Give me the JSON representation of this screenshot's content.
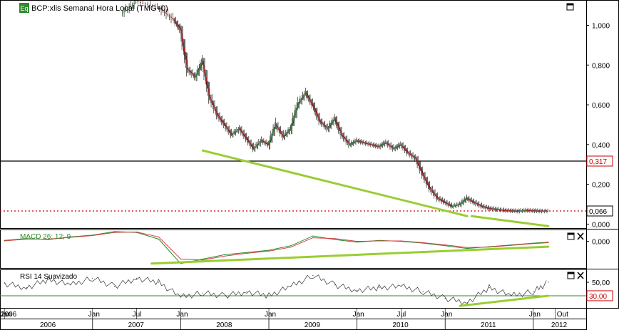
{
  "header": {
    "eq_badge": "Eq",
    "title": "BCP:xlis Semanal Hora Local (TMG+0)"
  },
  "colors": {
    "trendline": "#9acd32",
    "last_price_line": "#cc0000",
    "support_line": "#000000",
    "macd_line": "#2e8b2e",
    "signal_line": "#d04040",
    "rsi_line": "#333333",
    "rsi_threshold": "#2e8b2e",
    "up_candle": "#2e8b2e",
    "down_candle": "#b22222"
  },
  "icons": {
    "maximize": "maximize-icon",
    "close": "close-icon"
  },
  "chart_data": [
    {
      "type": "line",
      "name": "price",
      "title": "BCP:xlis Semanal Hora Local (TMG+0)",
      "y_ticks": [
        "1,000",
        "0,800",
        "0,600",
        "0,400",
        "0,200",
        "0,000"
      ],
      "ylim": [
        -0.02,
        1.12
      ],
      "markers": [
        {
          "label": "0,317",
          "value": 0.317,
          "style": "solid"
        },
        {
          "label": "0,066",
          "value": 0.066,
          "style": "dotted"
        }
      ],
      "x": [
        2007.33,
        2007.5,
        2007.75,
        2007.92,
        2008.0,
        2008.08,
        2008.17,
        2008.25,
        2008.33,
        2008.42,
        2008.5,
        2008.58,
        2008.67,
        2008.75,
        2008.83,
        2008.92,
        2009.0,
        2009.08,
        2009.17,
        2009.25,
        2009.33,
        2009.42,
        2009.5,
        2009.58,
        2009.67,
        2009.75,
        2009.83,
        2009.92,
        2010.0,
        2010.08,
        2010.17,
        2010.25,
        2010.33,
        2010.42,
        2010.5,
        2010.58,
        2010.67,
        2010.75,
        2010.83,
        2010.92,
        2011.0,
        2011.08,
        2011.17,
        2011.25,
        2011.33,
        2011.42,
        2011.5,
        2011.58,
        2011.67,
        2011.75,
        2011.83,
        2011.92,
        2012.0,
        2012.08,
        2012.17
      ],
      "y": [
        1.06,
        1.12,
        1.09,
        1.03,
        0.98,
        0.78,
        0.74,
        0.82,
        0.64,
        0.55,
        0.5,
        0.45,
        0.48,
        0.43,
        0.38,
        0.42,
        0.4,
        0.5,
        0.44,
        0.48,
        0.6,
        0.66,
        0.6,
        0.52,
        0.48,
        0.53,
        0.45,
        0.4,
        0.42,
        0.41,
        0.4,
        0.39,
        0.41,
        0.38,
        0.4,
        0.36,
        0.33,
        0.25,
        0.18,
        0.13,
        0.11,
        0.09,
        0.1,
        0.13,
        0.11,
        0.09,
        0.08,
        0.075,
        0.07,
        0.068,
        0.066,
        0.07,
        0.068,
        0.066,
        0.066
      ],
      "trendlines": [
        {
          "from": [
            2008.25,
            0.37
          ],
          "to": [
            2011.25,
            0.04
          ]
        },
        {
          "from": [
            2011.3,
            0.04
          ],
          "to": [
            2012.17,
            -0.01
          ]
        }
      ]
    },
    {
      "type": "line",
      "name": "macd",
      "legend": "MACD 26; 12; 9",
      "y_ticks": [
        "0,000"
      ],
      "x": [
        2006.0,
        2006.25,
        2006.5,
        2006.75,
        2007.0,
        2007.25,
        2007.5,
        2007.75,
        2008.0,
        2008.25,
        2008.5,
        2008.75,
        2009.0,
        2009.25,
        2009.5,
        2009.75,
        2010.0,
        2010.25,
        2010.5,
        2010.75,
        2011.0,
        2011.25,
        2011.5,
        2011.75,
        2012.0,
        2012.17
      ],
      "series": [
        {
          "values": [
            0.002,
            0.006,
            0.004,
            0.01,
            0.014,
            0.022,
            0.02,
            0.005,
            -0.05,
            -0.04,
            -0.03,
            -0.025,
            -0.02,
            -0.01,
            0.012,
            0.004,
            -0.002,
            0.002,
            0.0,
            -0.004,
            -0.01,
            -0.016,
            -0.012,
            -0.008,
            -0.004,
            -0.002
          ]
        },
        {
          "values": [
            0.001,
            0.005,
            0.005,
            0.009,
            0.013,
            0.02,
            0.021,
            0.01,
            -0.04,
            -0.042,
            -0.033,
            -0.027,
            -0.022,
            -0.013,
            0.008,
            0.006,
            0.0,
            0.001,
            0.001,
            -0.003,
            -0.008,
            -0.014,
            -0.013,
            -0.009,
            -0.005,
            -0.003
          ]
        }
      ],
      "trendline": {
        "from": [
          2007.67,
          -0.05
        ],
        "to": [
          2012.17,
          -0.012
        ]
      }
    },
    {
      "type": "line",
      "name": "rsi",
      "legend": "RSI 14 Suavizado",
      "y_ticks": [
        "50,00"
      ],
      "markers": [
        {
          "label": "30,00",
          "value": 30
        }
      ],
      "x": [
        2006.0,
        2006.25,
        2006.5,
        2006.75,
        2007.0,
        2007.25,
        2007.5,
        2007.75,
        2008.0,
        2008.25,
        2008.5,
        2008.75,
        2009.0,
        2009.25,
        2009.5,
        2009.75,
        2010.0,
        2010.25,
        2010.5,
        2010.75,
        2011.0,
        2011.25,
        2011.5,
        2011.75,
        2012.0,
        2012.17
      ],
      "y": [
        48,
        42,
        54,
        46,
        56,
        44,
        56,
        50,
        28,
        34,
        30,
        36,
        30,
        44,
        60,
        46,
        38,
        42,
        44,
        36,
        26,
        20,
        42,
        30,
        36,
        50
      ],
      "trendline": {
        "from": [
          2011.17,
          15
        ],
        "to": [
          2012.17,
          30
        ]
      }
    }
  ],
  "time_axis": {
    "months": [
      {
        "label": "2006",
        "x": 2006.0
      },
      {
        "label": "Jan",
        "x": 2006.0
      },
      {
        "label": "Jan",
        "x": 2007.0
      },
      {
        "label": "Jul",
        "x": 2007.5
      },
      {
        "label": "Jan",
        "x": 2008.0
      },
      {
        "label": "Jan",
        "x": 2009.0
      },
      {
        "label": "Jan",
        "x": 2010.0
      },
      {
        "label": "Jul",
        "x": 2010.5
      },
      {
        "label": "Jan",
        "x": 2011.0
      },
      {
        "label": "Jan",
        "x": 2012.0
      },
      {
        "label": "Out",
        "x": 2012.25
      }
    ],
    "years": [
      "2006",
      "2007",
      "2008",
      "2009",
      "2010",
      "2011",
      "2012"
    ]
  }
}
